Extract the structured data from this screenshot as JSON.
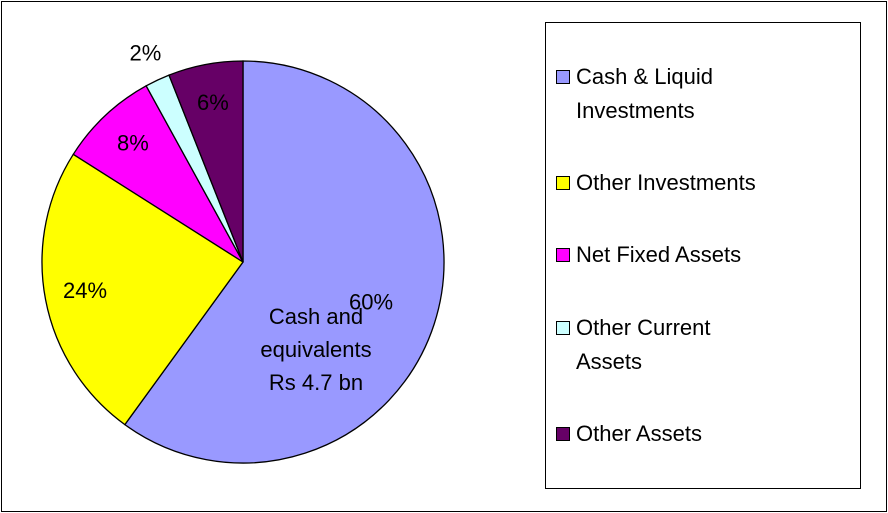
{
  "chart_data": {
    "type": "pie",
    "categories": [
      "Cash & Liquid Investments",
      "Other Investments",
      "Net Fixed Assets",
      "Other Current Assets",
      "Other Assets"
    ],
    "values": [
      60,
      24,
      8,
      2,
      6
    ],
    "value_labels": [
      "60%",
      "24%",
      "8%",
      "2%",
      "6%"
    ],
    "colors": [
      "#9999ff",
      "#ffff00",
      "#ff00ff",
      "#ccffff",
      "#660066"
    ],
    "annotation": "Cash and equivalents Rs 4.7 bn",
    "legend": "right"
  }
}
